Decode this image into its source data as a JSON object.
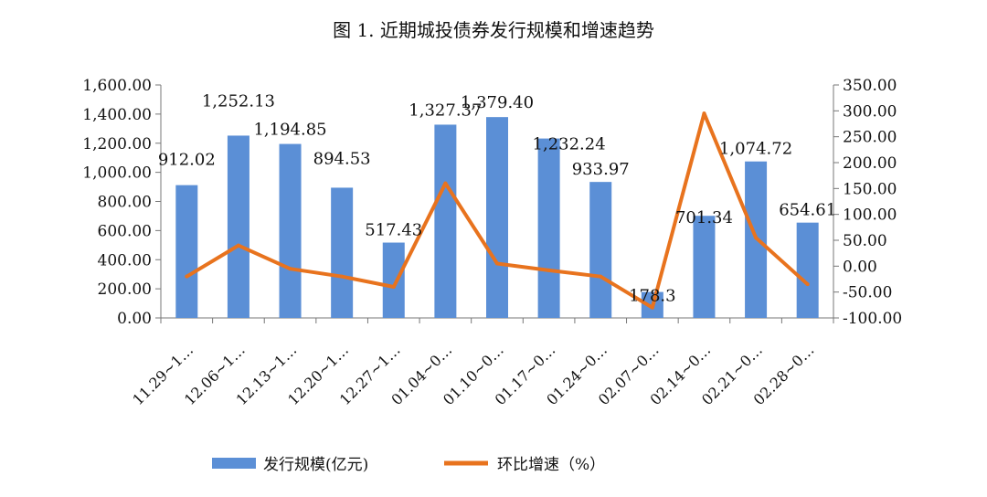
{
  "chart_data": {
    "type": "bar+line",
    "title": "图 1. 近期城投债券发行规模和增速趋势",
    "categories": [
      "11.29~1…",
      "12.06~1…",
      "12.13~1…",
      "12.20~1…",
      "12.27~1…",
      "01.04~0…",
      "01.10~0…",
      "01.17~0…",
      "01.24~0…",
      "02.07~0…",
      "02.14~0…",
      "02.21~0…",
      "02.28~0…"
    ],
    "series": [
      {
        "name": "发行规模(亿元)",
        "type": "bar",
        "axis": "left",
        "color": "#5b8fd6",
        "values": [
          912.02,
          1252.13,
          1194.85,
          894.53,
          517.43,
          1327.37,
          1379.4,
          1232.24,
          933.97,
          178.3,
          701.34,
          1074.72,
          654.61
        ],
        "labels": [
          "912.02",
          "1,252.13",
          "1,194.85",
          "894.53",
          "517.43",
          "1,327.37",
          "1,379.40",
          "1,232.24",
          "933.97",
          "178.3",
          "701.34",
          "1,074.72",
          "654.61"
        ]
      },
      {
        "name": "环比增速（%）",
        "type": "line",
        "axis": "right",
        "color": "#e8731e",
        "values": [
          -20,
          40,
          -5,
          -20,
          -40,
          160,
          5,
          -8,
          -20,
          -80,
          295,
          55,
          -35
        ]
      }
    ],
    "y_left": {
      "min": 0,
      "max": 1600,
      "ticks": [
        0,
        200,
        400,
        600,
        800,
        1000,
        1200,
        1400,
        1600
      ],
      "tick_labels": [
        "0.00",
        "200.00",
        "400.00",
        "600.00",
        "800.00",
        "1,000.00",
        "1,200.00",
        "1,400.00",
        "1,600.00"
      ]
    },
    "y_right": {
      "min": -100,
      "max": 350,
      "ticks": [
        -100,
        -50,
        0,
        50,
        100,
        150,
        200,
        250,
        300,
        350
      ],
      "tick_labels": [
        "-100.00",
        "-50.00",
        "0.00",
        "50.00",
        "100.00",
        "150.00",
        "200.00",
        "250.00",
        "300.00",
        "350.00"
      ]
    },
    "grid": false,
    "legend": "bottom-center",
    "legend_entries": [
      "发行规模(亿元)",
      "环比增速（%）"
    ]
  }
}
